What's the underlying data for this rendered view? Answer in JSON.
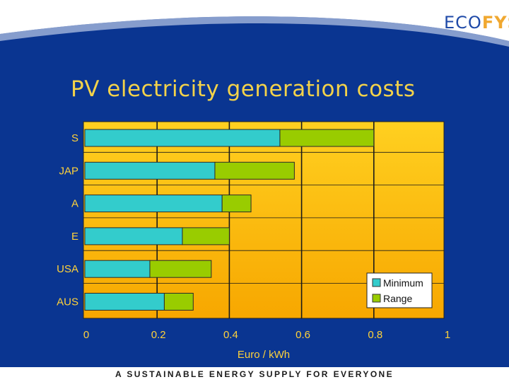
{
  "title": "PV electricity generation costs",
  "logo": {
    "left": "ECO",
    "right": "FYS"
  },
  "footer": "A SUSTAINABLE ENERGY SUPPLY FOR EVERYONE",
  "colors": {
    "background": "#0a3591",
    "plot_gradient_top": "#ffd020",
    "plot_gradient_bottom": "#f7a700",
    "minimum": "#33cccc",
    "range": "#99cc00",
    "title": "#f3d24a"
  },
  "chart_data": {
    "type": "bar",
    "orientation": "horizontal",
    "stacked": true,
    "categories": [
      "S",
      "JAP",
      "A",
      "E",
      "USA",
      "AUS"
    ],
    "series": [
      {
        "name": "Minimum",
        "values": [
          0.54,
          0.36,
          0.38,
          0.27,
          0.18,
          0.22
        ]
      },
      {
        "name": "Range",
        "values": [
          0.26,
          0.22,
          0.08,
          0.13,
          0.17,
          0.08
        ]
      }
    ],
    "xlabel": "Euro / kWh",
    "ylabel": "",
    "xlim": [
      0,
      1
    ],
    "xticks": [
      "0",
      "0.2",
      "0.4",
      "0.6",
      "0.8",
      "1"
    ],
    "grid": "vertical",
    "legend": "bottom-right"
  }
}
